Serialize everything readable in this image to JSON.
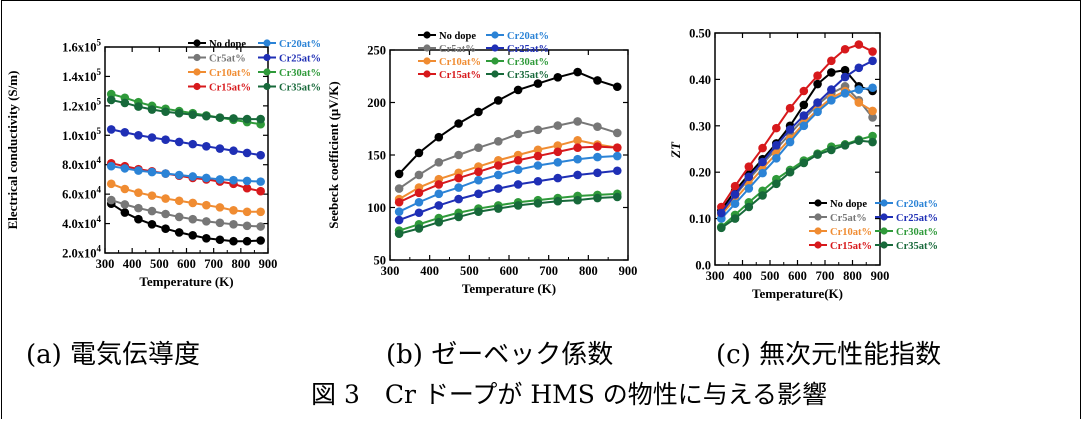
{
  "figure": {
    "caption": "図 3　Cr ドープが HMS の物性に与える影響"
  },
  "chart_data": [
    {
      "id": "a",
      "type": "line",
      "caption": "(a)  電気伝導度",
      "xlabel": "Temperature (K)",
      "ylabel": "Electrical conductivity (S/m)",
      "xlim": [
        300,
        900
      ],
      "ylim": [
        20000,
        160000
      ],
      "xticks": [
        300,
        400,
        500,
        600,
        700,
        800,
        900
      ],
      "yticks": [
        {
          "v": 20000,
          "m": "2.0",
          "e": "4"
        },
        {
          "v": 40000,
          "m": "4.0",
          "e": "4"
        },
        {
          "v": 60000,
          "m": "6.0",
          "e": "4"
        },
        {
          "v": 80000,
          "m": "8.0",
          "e": "4"
        },
        {
          "v": 100000,
          "m": "1.0",
          "e": "5"
        },
        {
          "v": 120000,
          "m": "1.2",
          "e": "5"
        },
        {
          "v": 140000,
          "m": "1.4",
          "e": "5"
        },
        {
          "v": 160000,
          "m": "1.6",
          "e": "5"
        }
      ],
      "legend_position": "top-right",
      "x": [
        323,
        373,
        423,
        473,
        523,
        573,
        623,
        673,
        723,
        773,
        823,
        873
      ],
      "series": [
        {
          "name": "No dope",
          "color": "#000000",
          "values": [
            53500,
            47500,
            43000,
            39500,
            36500,
            34000,
            32000,
            30000,
            29000,
            28000,
            28000,
            28500
          ]
        },
        {
          "name": "Cr5at%",
          "color": "#777777",
          "values": [
            56000,
            53000,
            50500,
            48500,
            46500,
            44500,
            43000,
            41500,
            40500,
            39500,
            38500,
            38000
          ]
        },
        {
          "name": "Cr10at%",
          "color": "#f08c32",
          "values": [
            67000,
            63500,
            61000,
            59000,
            57000,
            55500,
            54000,
            52500,
            51000,
            49000,
            48000,
            48000
          ]
        },
        {
          "name": "Cr15at%",
          "color": "#d7191c",
          "values": [
            81000,
            79000,
            77000,
            75500,
            74000,
            72500,
            71000,
            70000,
            68500,
            67000,
            64000,
            62000
          ]
        },
        {
          "name": "Cr20at%",
          "color": "#2b83d6",
          "values": [
            79000,
            77500,
            76000,
            75000,
            74000,
            73000,
            72000,
            71000,
            70000,
            69500,
            69000,
            68500
          ]
        },
        {
          "name": "Cr25at%",
          "color": "#1f2fb5",
          "values": [
            104000,
            102000,
            100000,
            98500,
            97000,
            95500,
            94000,
            92500,
            91000,
            89500,
            88000,
            86500
          ]
        },
        {
          "name": "Cr30at%",
          "color": "#2f9a3a",
          "values": [
            128000,
            125500,
            122500,
            120000,
            118000,
            116500,
            115000,
            113500,
            112000,
            110500,
            109000,
            107500
          ]
        },
        {
          "name": "Cr35at%",
          "color": "#17693a",
          "values": [
            124000,
            122000,
            119500,
            117500,
            116000,
            115000,
            114000,
            113000,
            112000,
            111500,
            111000,
            111000
          ]
        }
      ]
    },
    {
      "id": "b",
      "type": "line",
      "caption": "(b)  ゼーベック係数",
      "xlabel": "Temperature (K)",
      "ylabel": "Seebeck coefficient (μV/K)",
      "xlim": [
        300,
        900
      ],
      "ylim": [
        50,
        250
      ],
      "xticks": [
        300,
        400,
        500,
        600,
        700,
        800,
        900
      ],
      "yticks": [
        {
          "v": 50,
          "m": "50"
        },
        {
          "v": 100,
          "m": "100"
        },
        {
          "v": 150,
          "m": "150"
        },
        {
          "v": 200,
          "m": "200"
        },
        {
          "v": 250,
          "m": "250"
        }
      ],
      "legend_position": "top-left",
      "x": [
        323,
        373,
        423,
        473,
        523,
        573,
        623,
        673,
        723,
        773,
        823,
        873
      ],
      "series": [
        {
          "name": "No dope",
          "color": "#000000",
          "values": [
            132,
            152,
            167,
            180,
            191,
            202,
            212,
            218,
            224,
            229,
            221,
            215
          ]
        },
        {
          "name": "Cr5at%",
          "color": "#777777",
          "values": [
            118,
            131,
            143,
            150,
            157,
            163,
            170,
            174,
            178,
            182,
            177,
            171
          ]
        },
        {
          "name": "Cr10at%",
          "color": "#f08c32",
          "values": [
            108,
            119,
            127,
            133,
            139,
            145,
            150,
            155,
            159,
            164,
            160,
            157
          ]
        },
        {
          "name": "Cr15at%",
          "color": "#d7191c",
          "values": [
            105,
            114,
            122,
            128,
            134,
            140,
            145,
            149,
            153,
            157,
            158,
            157
          ]
        },
        {
          "name": "Cr20at%",
          "color": "#2b83d6",
          "values": [
            96,
            105,
            113,
            119,
            126,
            131,
            136,
            140,
            143,
            146,
            148,
            149
          ]
        },
        {
          "name": "Cr25at%",
          "color": "#1f2fb5",
          "values": [
            88,
            95,
            102,
            108,
            113,
            118,
            122,
            125,
            128,
            131,
            133,
            135
          ]
        },
        {
          "name": "Cr30at%",
          "color": "#2f9a3a",
          "values": [
            78,
            84,
            90,
            95,
            99,
            102,
            105,
            107,
            109,
            111,
            112,
            113
          ]
        },
        {
          "name": "Cr35at%",
          "color": "#17693a",
          "values": [
            75,
            80,
            86,
            91,
            96,
            99,
            102,
            104,
            106,
            107,
            109,
            110
          ]
        }
      ]
    },
    {
      "id": "c",
      "type": "line",
      "caption": "(c)  無次元性能指数",
      "xlabel": "Temperature(K)",
      "ylabel": "ZT",
      "xlim": [
        300,
        900
      ],
      "ylim": [
        0.0,
        0.5
      ],
      "xticks": [
        300,
        400,
        500,
        600,
        700,
        800,
        900
      ],
      "yticks": [
        {
          "v": 0.0,
          "m": "0.0"
        },
        {
          "v": 0.1,
          "m": "0.10"
        },
        {
          "v": 0.2,
          "m": "0.20"
        },
        {
          "v": 0.3,
          "m": "0.30"
        },
        {
          "v": 0.4,
          "m": "0.40"
        },
        {
          "v": 0.5,
          "m": "0.50"
        }
      ],
      "legend_position": "bottom-right",
      "x": [
        323,
        373,
        423,
        473,
        523,
        573,
        623,
        673,
        723,
        773,
        823,
        873
      ],
      "series": [
        {
          "name": "No dope",
          "color": "#000000",
          "values": [
            0.118,
            0.16,
            0.195,
            0.228,
            0.262,
            0.3,
            0.345,
            0.39,
            0.415,
            0.42,
            0.385,
            0.375
          ]
        },
        {
          "name": "Cr5at%",
          "color": "#777777",
          "values": [
            0.112,
            0.15,
            0.185,
            0.218,
            0.25,
            0.283,
            0.315,
            0.345,
            0.37,
            0.385,
            0.355,
            0.318
          ]
        },
        {
          "name": "Cr10at%",
          "color": "#f08c32",
          "values": [
            0.108,
            0.142,
            0.175,
            0.208,
            0.24,
            0.272,
            0.305,
            0.335,
            0.36,
            0.375,
            0.35,
            0.332
          ]
        },
        {
          "name": "Cr15at%",
          "color": "#d7191c",
          "values": [
            0.125,
            0.17,
            0.212,
            0.252,
            0.295,
            0.338,
            0.375,
            0.408,
            0.44,
            0.465,
            0.475,
            0.46
          ]
        },
        {
          "name": "Cr20at%",
          "color": "#2b83d6",
          "values": [
            0.1,
            0.132,
            0.165,
            0.198,
            0.23,
            0.265,
            0.3,
            0.33,
            0.355,
            0.37,
            0.378,
            0.382
          ]
        },
        {
          "name": "Cr25at%",
          "color": "#1f2fb5",
          "values": [
            0.112,
            0.152,
            0.19,
            0.222,
            0.258,
            0.292,
            0.322,
            0.35,
            0.378,
            0.405,
            0.425,
            0.44
          ]
        },
        {
          "name": "Cr30at%",
          "color": "#2f9a3a",
          "values": [
            0.082,
            0.108,
            0.135,
            0.16,
            0.185,
            0.205,
            0.225,
            0.24,
            0.255,
            0.26,
            0.27,
            0.278
          ]
        },
        {
          "name": "Cr35at%",
          "color": "#17693a",
          "values": [
            0.08,
            0.1,
            0.125,
            0.15,
            0.175,
            0.2,
            0.22,
            0.238,
            0.248,
            0.258,
            0.268,
            0.265
          ]
        }
      ]
    }
  ]
}
